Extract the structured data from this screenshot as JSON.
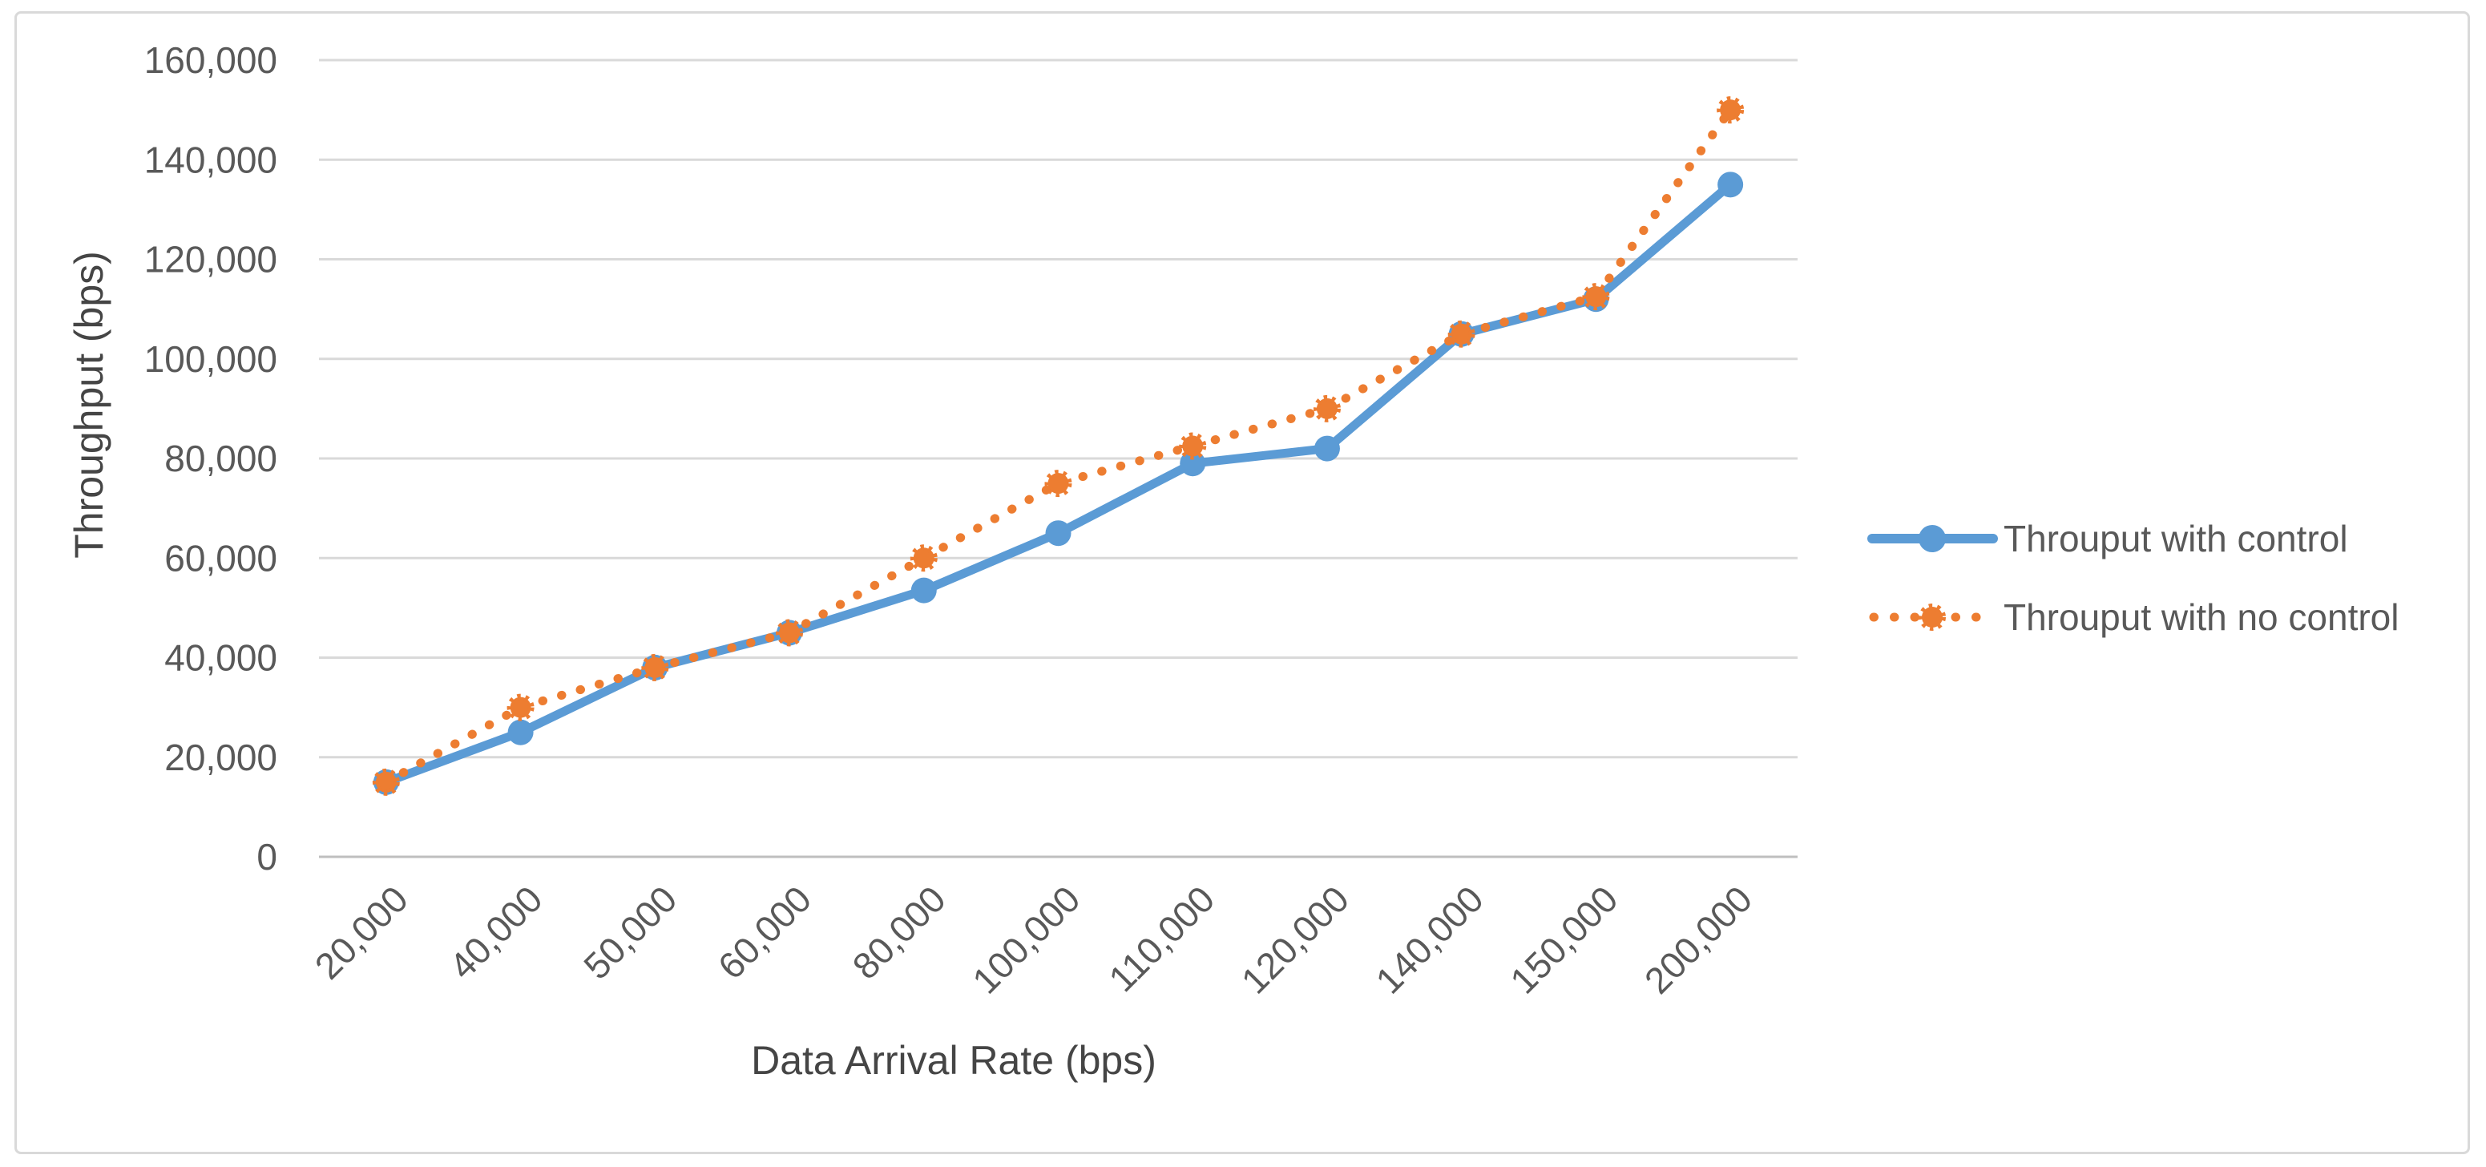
{
  "chart_data": {
    "type": "line",
    "title": "",
    "xlabel": "Data Arrival Rate (bps)",
    "ylabel": "Throughput (bps)",
    "categories": [
      "20,000",
      "40,000",
      "50,000",
      "60,000",
      "80,000",
      "100,000",
      "110,000",
      "120,000",
      "140,000",
      "150,000",
      "200,000"
    ],
    "series": [
      {
        "name": "Throuput with control",
        "color": "#5B9BD5",
        "line_style": "solid",
        "marker": "circle",
        "values": [
          15000,
          25000,
          38000,
          45000,
          53500,
          65000,
          79000,
          82000,
          105000,
          112000,
          135000
        ]
      },
      {
        "name": "Throuput with no control",
        "color": "#ED7D31",
        "line_style": "dotted",
        "marker": "scalloped-circle",
        "values": [
          15000,
          30000,
          38000,
          45000,
          60000,
          75000,
          82500,
          90000,
          105000,
          112500,
          150000
        ]
      }
    ],
    "ylim": [
      0,
      160000
    ],
    "y_tick_step": 20000,
    "y_ticks": [
      "0",
      "20,000",
      "40,000",
      "60,000",
      "80,000",
      "100,000",
      "120,000",
      "140,000",
      "160,000"
    ],
    "grid": "horizontal",
    "legend_position": "right"
  },
  "colors": {
    "background": "#FFFFFF",
    "border": "#D9D9D9",
    "gridline": "#D9D9D9",
    "axis_line": "#BFBFBF",
    "tick_text": "#595959",
    "title_text": "#454545"
  }
}
